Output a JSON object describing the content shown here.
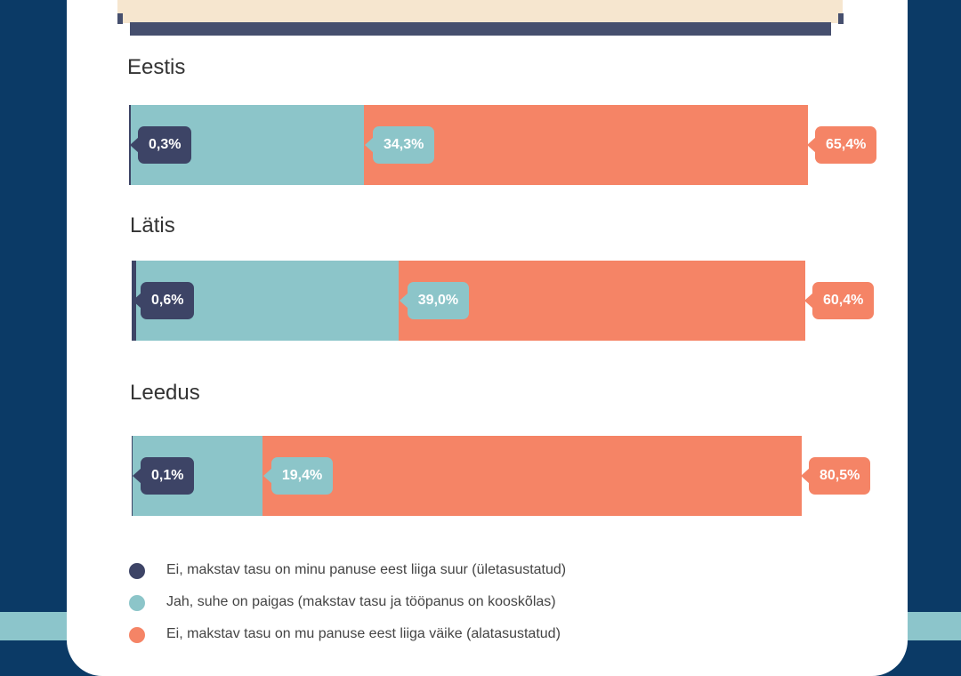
{
  "chart_data": {
    "type": "bar",
    "stacked": true,
    "orientation": "horizontal",
    "categories": [
      "Eestis",
      "Lätis",
      "Leedus"
    ],
    "series": [
      {
        "name": "Ei, makstav tasu on minu panuse eest liiga suur (ületasustatud)",
        "color": "#3d4466",
        "values": [
          0.3,
          0.6,
          0.1
        ],
        "labels": [
          "0,3%",
          "0,6%",
          "0,1%"
        ]
      },
      {
        "name": "Jah, suhe on paigas (makstav tasu ja tööpanus on kooskõlas)",
        "color": "#8cc5c9",
        "values": [
          34.3,
          39.0,
          19.4
        ],
        "labels": [
          "34,3%",
          "39,0%",
          "19,4%"
        ]
      },
      {
        "name": "Ei, makstav tasu on mu panuse eest liiga väike (alatasustatud)",
        "color": "#f58466",
        "values": [
          65.4,
          60.4,
          80.5
        ],
        "labels": [
          "65,4%",
          "60,4%",
          "80,5%"
        ]
      }
    ],
    "xlim": [
      0,
      100
    ],
    "legend_position": "bottom-left"
  }
}
